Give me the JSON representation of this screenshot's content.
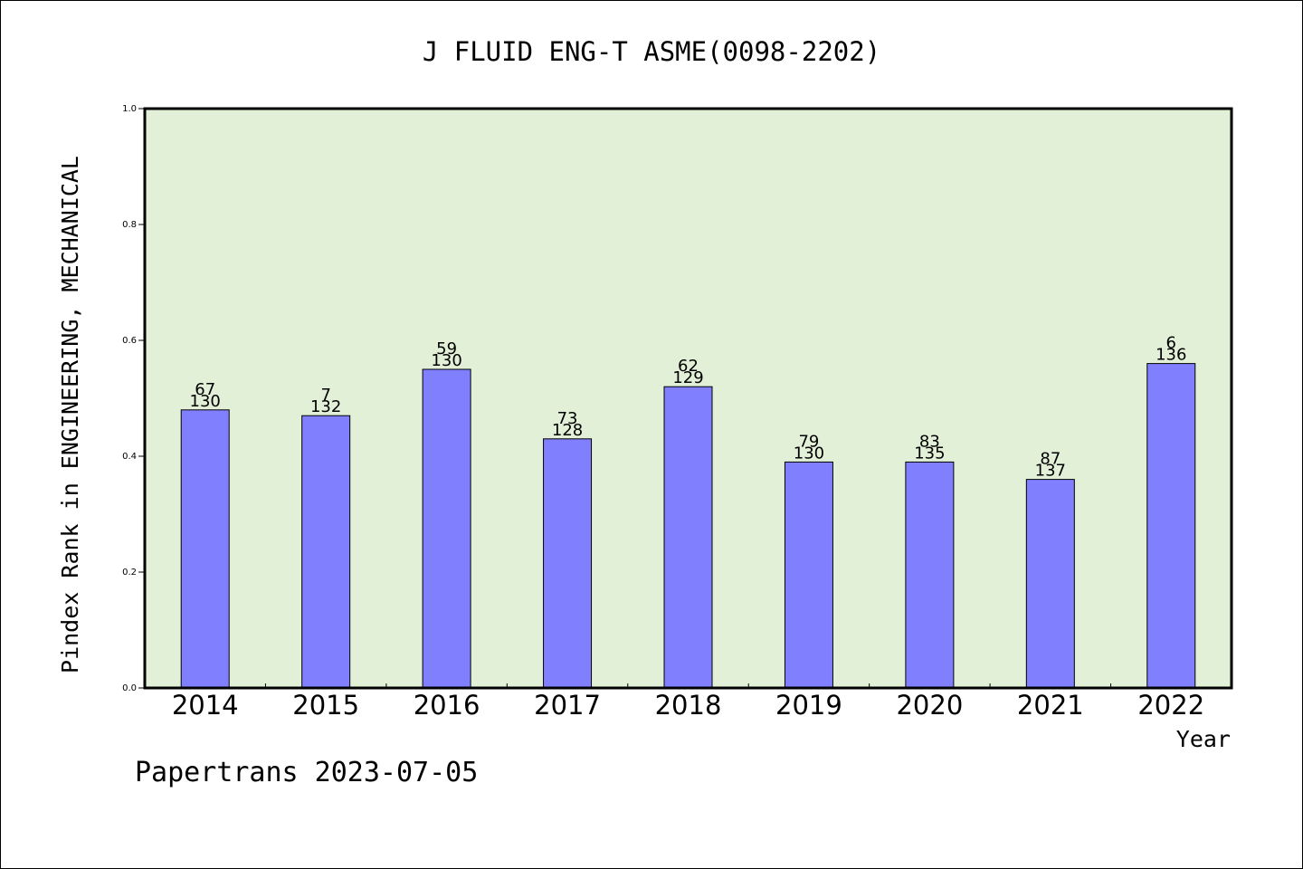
{
  "chart_data": {
    "type": "bar",
    "title": "J FLUID ENG-T ASME(0098-2202)",
    "xlabel": "Year",
    "ylabel": "Pindex Rank in ENGINEERING, MECHANICAL",
    "footer": "Papertrans 2023-07-05",
    "categories": [
      "2014",
      "2015",
      "2016",
      "2017",
      "2018",
      "2019",
      "2020",
      "2021",
      "2022"
    ],
    "values": [
      0.48,
      0.47,
      0.55,
      0.43,
      0.52,
      0.39,
      0.39,
      0.36,
      0.56
    ],
    "rank": [
      "67",
      "7",
      "59",
      "73",
      "62",
      "79",
      "83",
      "87",
      "6"
    ],
    "total": [
      "130",
      "132",
      "130",
      "128",
      "129",
      "130",
      "135",
      "137",
      "136"
    ],
    "ylim": [
      0,
      1.0
    ],
    "yticks": [
      "0.0",
      "0.2",
      "0.4",
      "0.6",
      "0.8",
      "1.0"
    ],
    "grid": false,
    "colors": {
      "plot_bg": "#e2f0d8",
      "bar": "#8080ff",
      "bar_stroke": "#000000"
    }
  }
}
